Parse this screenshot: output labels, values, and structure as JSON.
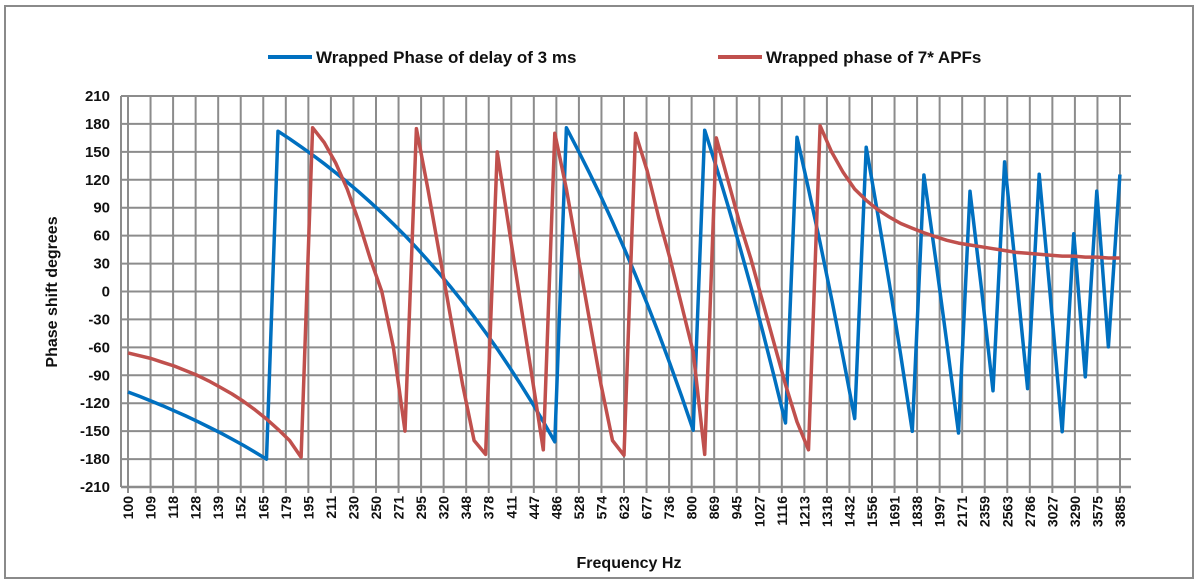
{
  "chart_data": {
    "type": "line",
    "title": "",
    "xlabel": "Frequency Hz",
    "ylabel": "Phase shift degrees",
    "ylim": [
      -210,
      210
    ],
    "yticks": [
      210,
      180,
      150,
      120,
      90,
      60,
      30,
      0,
      -30,
      -60,
      -90,
      -120,
      -150,
      -180,
      -210
    ],
    "xtick_labels": [
      "100",
      "109",
      "118",
      "128",
      "139",
      "152",
      "165",
      "179",
      "195",
      "211",
      "230",
      "250",
      "271",
      "295",
      "320",
      "348",
      "378",
      "411",
      "447",
      "486",
      "528",
      "574",
      "623",
      "677",
      "736",
      "800",
      "869",
      "945",
      "1027",
      "1116",
      "1213",
      "1318",
      "1432",
      "1556",
      "1691",
      "1838",
      "1997",
      "2171",
      "2359",
      "2563",
      "2786",
      "3027",
      "3290",
      "3575",
      "3885"
    ],
    "grid": true,
    "legend_position": "top",
    "x": [
      100,
      104.3,
      108.9,
      113.6,
      118.6,
      123.7,
      129.1,
      134.7,
      140.6,
      146.7,
      153.1,
      159.7,
      166.7,
      173.9,
      181.5,
      189.4,
      197.6,
      206.2,
      215.2,
      224.5,
      234.3,
      244.5,
      255.1,
      266.2,
      277.8,
      289.8,
      302.4,
      315.6,
      329.3,
      343.6,
      358.5,
      374.1,
      390.4,
      407.4,
      425.0,
      443.5,
      462.8,
      482.9,
      503.9,
      525.8,
      548.6,
      572.5,
      597.4,
      623.3,
      650.4,
      678.7,
      708.2,
      738.9,
      771.1,
      804.6,
      839.5,
      876.0,
      914.1,
      953.8,
      995.3,
      1038.6,
      1083.7,
      1130.8,
      1180.0,
      1231.3,
      1284.8,
      1340.6,
      1398.9,
      1459.7,
      1523.1,
      1589.3,
      1658.4,
      1730.5,
      1805.7,
      1884.2,
      1966.1,
      2051.5,
      2140.7,
      2233.7,
      2330.8,
      2432.1,
      2537.8,
      2648.1,
      2763.2,
      2883.3,
      3008.6,
      3139.4,
      3275.8,
      3418.2,
      3566.8,
      3721.8,
      3883.6
    ],
    "series": [
      {
        "name": "Wrapped Phase of delay of 3 ms",
        "color": "#0070C0",
        "values": [
          -108,
          -112.6,
          -117.6,
          -122.7,
          -128.1,
          -133.6,
          -139.4,
          -145.5,
          -151.8,
          -158.4,
          -165.3,
          -172.5,
          -180,
          172.2,
          164.0,
          155.4,
          146.6,
          137.3,
          127.6,
          117.5,
          107.0,
          95.9,
          84.5,
          72.5,
          60.0,
          47.0,
          33.4,
          19.2,
          4.4,
          -11.1,
          -27.2,
          -44.0,
          -61.6,
          -80.0,
          -99.0,
          -119.0,
          -139.8,
          -161.5,
          175.8,
          152.1,
          127.5,
          101.7,
          74.8,
          46.8,
          17.6,
          -13.0,
          -44.9,
          -78.0,
          -112.8,
          -149.0,
          173.3,
          133.9,
          92.8,
          49.9,
          5.1,
          -41.7,
          -90.4,
          -141.3,
          165.6,
          110.2,
          52.4,
          -7.8,
          -70.8,
          -136.5,
          155.0,
          83.6,
          8.9,
          -68.9,
          -150.2,
          125.1,
          36.6,
          -55.6,
          -152.0,
          107.6,
          2.7,
          -106.7,
          139.2,
          20.1,
          -104.3,
          126.0,
          -9.3,
          -150.6,
          62.1,
          -91.7,
          107.9,
          -59.5,
          125.7
        ]
      },
      {
        "name": "Wrapped phase of 7* APFs",
        "color": "#C0504D",
        "values": [
          -66,
          -69,
          -72,
          -76,
          -80,
          -85,
          -90,
          -96,
          -103,
          -110,
          -118,
          -127,
          -137,
          -148,
          -160,
          -178,
          176,
          160,
          138,
          110,
          75,
          35,
          0,
          -60,
          -150,
          175,
          110,
          40,
          -30,
          -100,
          -160,
          -175,
          150,
          70,
          -10,
          -90,
          -170,
          170,
          110,
          40,
          -30,
          -100,
          -160,
          -176,
          170,
          130,
          80,
          35,
          -15,
          -65,
          -175,
          165,
          120,
          75,
          35,
          -10,
          -55,
          -100,
          -140,
          -170,
          178,
          150,
          128,
          110,
          98,
          88,
          80,
          73,
          68,
          63,
          59,
          55,
          52,
          50,
          48,
          46,
          44,
          42,
          41,
          40,
          39,
          38,
          38,
          37,
          37,
          36,
          36
        ]
      }
    ]
  }
}
